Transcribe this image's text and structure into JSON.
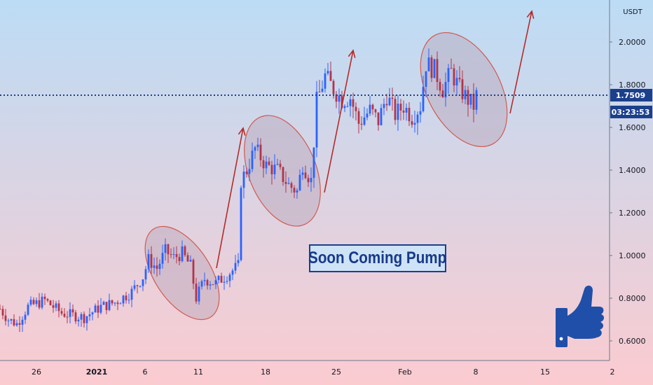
{
  "chart_data": {
    "type": "candlestick",
    "unit_label": "USDT",
    "y_ticks": [
      "2.0000",
      "1.8000",
      "1.6000",
      "1.4000",
      "1.2000",
      "1.0000",
      "0.8000",
      "0.6000"
    ],
    "y_tick_values": [
      2.0,
      1.8,
      1.6,
      1.4,
      1.2,
      1.0,
      0.8,
      0.6
    ],
    "x_ticks": [
      "26",
      "2021",
      "6",
      "11",
      "18",
      "25",
      "Feb",
      "8",
      "15",
      "2"
    ],
    "current_price": "1.7509",
    "countdown": "03:23:53",
    "annotation": "Soon Coming Pump",
    "anchors": [
      {
        "t": 0,
        "v": 0.75
      },
      {
        "t": 3,
        "v": 0.7
      },
      {
        "t": 6,
        "v": 0.68
      },
      {
        "t": 10,
        "v": 0.76
      },
      {
        "t": 16,
        "v": 0.79
      },
      {
        "t": 22,
        "v": 0.73
      },
      {
        "t": 30,
        "v": 0.71
      },
      {
        "t": 36,
        "v": 0.76
      },
      {
        "t": 41,
        "v": 0.78
      },
      {
        "t": 47,
        "v": 0.83
      },
      {
        "t": 51,
        "v": 0.9
      },
      {
        "t": 53,
        "v": 0.98
      },
      {
        "t": 56,
        "v": 0.94
      },
      {
        "t": 59,
        "v": 1.02
      },
      {
        "t": 62,
        "v": 0.99
      },
      {
        "t": 65,
        "v": 1.01
      },
      {
        "t": 68,
        "v": 0.95
      },
      {
        "t": 70,
        "v": 0.8
      },
      {
        "t": 73,
        "v": 0.89
      },
      {
        "t": 77,
        "v": 0.87
      },
      {
        "t": 82,
        "v": 0.92
      },
      {
        "t": 85,
        "v": 0.95
      },
      {
        "t": 86,
        "v": 1.35
      },
      {
        "t": 88,
        "v": 1.4
      },
      {
        "t": 91,
        "v": 1.5
      },
      {
        "t": 95,
        "v": 1.42
      },
      {
        "t": 99,
        "v": 1.4
      },
      {
        "t": 103,
        "v": 1.33
      },
      {
        "t": 106,
        "v": 1.3
      },
      {
        "t": 108,
        "v": 1.43
      },
      {
        "t": 111,
        "v": 1.35
      },
      {
        "t": 113,
        "v": 1.72
      },
      {
        "t": 116,
        "v": 1.84
      },
      {
        "t": 119,
        "v": 1.78
      },
      {
        "t": 122,
        "v": 1.73
      },
      {
        "t": 125,
        "v": 1.74
      },
      {
        "t": 128,
        "v": 1.62
      },
      {
        "t": 132,
        "v": 1.68
      },
      {
        "t": 135,
        "v": 1.63
      },
      {
        "t": 138,
        "v": 1.75
      },
      {
        "t": 141,
        "v": 1.66
      },
      {
        "t": 144,
        "v": 1.7
      },
      {
        "t": 147,
        "v": 1.65
      },
      {
        "t": 150,
        "v": 1.7
      },
      {
        "t": 152,
        "v": 1.9
      },
      {
        "t": 155,
        "v": 1.87
      },
      {
        "t": 158,
        "v": 1.78
      },
      {
        "t": 161,
        "v": 1.86
      },
      {
        "t": 164,
        "v": 1.78
      },
      {
        "t": 167,
        "v": 1.73
      },
      {
        "t": 169,
        "v": 1.7
      },
      {
        "t": 170,
        "v": 1.75
      }
    ],
    "colors": {
      "up": "#2962ff",
      "down": "#b2344a",
      "arrow": "#b52a2a",
      "ellipse_stroke": "#d05a50",
      "ellipse_fill": "#b9a3b8",
      "price_line": "#1c3f8c",
      "bg_top": "#bcdcf5",
      "bg_bottom": "#fbcbd0",
      "thumb": "#1f4fa8"
    }
  }
}
